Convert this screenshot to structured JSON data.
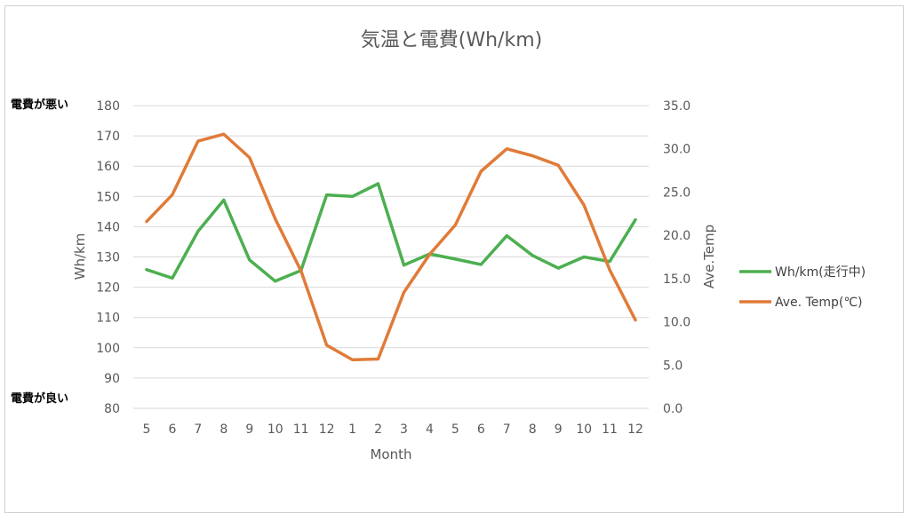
{
  "chart_data": {
    "type": "line",
    "title": "気温と電費(Wh/km)",
    "xlabel": "Month",
    "ylabel_left": "Wh/km",
    "ylabel_right": "Ave.Temp",
    "annotation_top": "電費が悪い",
    "annotation_bottom": "電費が良い",
    "categories": [
      "5",
      "6",
      "7",
      "8",
      "9",
      "10",
      "11",
      "12",
      "1",
      "2",
      "3",
      "4",
      "5",
      "6",
      "7",
      "8",
      "9",
      "10",
      "11",
      "12"
    ],
    "ylim_left": [
      80,
      180
    ],
    "yticks_left": [
      "180",
      "170",
      "160",
      "150",
      "140",
      "130",
      "120",
      "110",
      "100",
      "90",
      "80"
    ],
    "ylim_right": [
      0,
      35
    ],
    "yticks_right": [
      "35.0",
      "30.0",
      "25.0",
      "20.0",
      "15.0",
      "10.0",
      "5.0",
      "0.0"
    ],
    "grid": true,
    "legend_position": "right",
    "series": [
      {
        "name": "Wh/km(走行中)",
        "axis": "left",
        "color": "#4CAF50",
        "values": [
          125.8,
          123.0,
          138.5,
          148.8,
          129.0,
          122.0,
          125.5,
          150.5,
          150.0,
          154.2,
          127.3,
          131.0,
          129.3,
          127.5,
          137.0,
          130.5,
          126.3,
          130.0,
          128.5,
          142.3
        ]
      },
      {
        "name": "Ave. Temp(℃)",
        "axis": "right",
        "color": "#E07B39",
        "values": [
          21.6,
          24.7,
          30.9,
          31.7,
          29.0,
          21.9,
          15.9,
          7.3,
          5.6,
          5.7,
          13.4,
          17.8,
          21.2,
          27.4,
          30.0,
          29.2,
          28.1,
          23.5,
          16.0,
          10.2
        ]
      }
    ]
  }
}
